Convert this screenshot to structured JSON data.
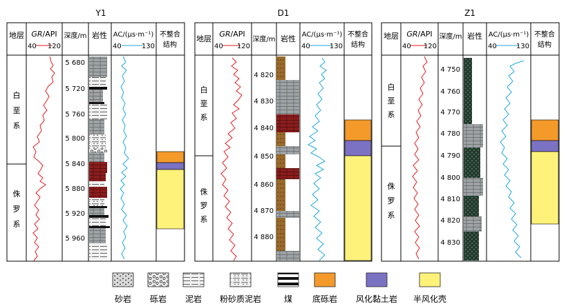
{
  "colors": {
    "gr_curve": "#e31a1c",
    "ac_curve": "#1ba7e0",
    "basal_conglomerate": "#f39a2b",
    "weathered_clay": "#7b72c4",
    "semi_weathered_crust": "#fff27a",
    "sandstone": "#9a9a9a",
    "mudstone": "#8b1d1d",
    "siltstone": "#9a6a2a",
    "dark_lithology": "#1a3a2a"
  },
  "columns": {
    "stratum": "地层",
    "gr_prefix": "GR",
    "gr_suffix": "/API",
    "gr_min": "40",
    "gr_max": "120",
    "depth": "深度/m",
    "lithology": "岩性",
    "ac_label": "AC/(μs·m⁻¹)",
    "ac_min": "40",
    "ac_max": "130",
    "unconf_line1": "不整合",
    "unconf_line2": "结构"
  },
  "wells": [
    {
      "name": "Y1",
      "strata": [
        {
          "name": "白垩系",
          "chars": [
            "白",
            "垩",
            "系"
          ]
        },
        {
          "name": "侏罗系",
          "chars": [
            "侏",
            "罗",
            "系"
          ]
        }
      ],
      "depth_ticks": [
        "5 680",
        "5 720",
        "5 760",
        "5 800",
        "5 840",
        "5 880",
        "5 920",
        "5 960"
      ]
    },
    {
      "name": "D1",
      "strata": [
        {
          "name": "白垩系",
          "chars": [
            "白",
            "垩",
            "系"
          ]
        },
        {
          "name": "侏罗系",
          "chars": [
            "侏",
            "罗",
            "系"
          ]
        }
      ],
      "depth_ticks": [
        "4 820",
        "4 830",
        "4 840",
        "4 850",
        "4 860",
        "4 870",
        "4 880"
      ]
    },
    {
      "name": "Z1",
      "strata": [
        {
          "name": "白垩系",
          "chars": [
            "白",
            "垩",
            "系"
          ]
        },
        {
          "name": "侏罗系",
          "chars": [
            "侏",
            "罗",
            "系"
          ]
        }
      ],
      "depth_ticks": [
        "4 750",
        "4 760",
        "4 770",
        "4 780",
        "4 790",
        "4 800",
        "4 810",
        "4 820",
        "4 830"
      ]
    }
  ],
  "legend": [
    {
      "key": "sandstone",
      "label": "砂岩"
    },
    {
      "key": "conglomerate",
      "label": "砾岩"
    },
    {
      "key": "mudstone",
      "label": "泥岩"
    },
    {
      "key": "silty_mudstone",
      "label": "粉砂质泥岩"
    },
    {
      "key": "coal",
      "label": "煤"
    },
    {
      "key": "basal_conglomerate",
      "label": "底砾岩"
    },
    {
      "key": "weathered_clay",
      "label": "风化黏土岩"
    },
    {
      "key": "semi_weathered_crust",
      "label": "半风化壳"
    }
  ]
}
